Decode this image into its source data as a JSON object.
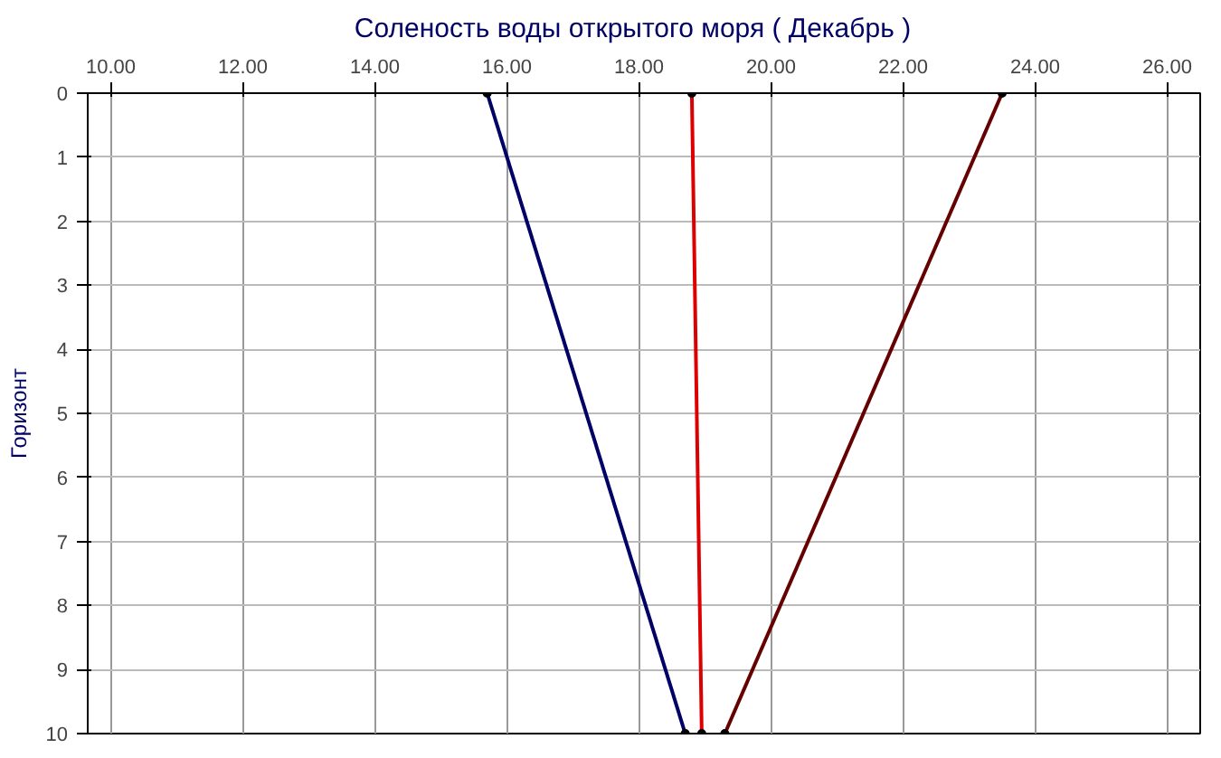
{
  "chart_data": {
    "type": "line",
    "title": "Соленость воды открытого моря    ( Декабрь )",
    "ylabel": "Горизонт",
    "series": [
      {
        "color": "#000066",
        "x": [
          15.7,
          18.7
        ],
        "values": [
          0,
          10
        ]
      },
      {
        "color": "#dd0000",
        "x": [
          18.8,
          18.95
        ],
        "values": [
          0,
          10
        ]
      },
      {
        "color": "#660000",
        "x": [
          23.5,
          19.3
        ],
        "values": [
          0,
          10
        ]
      }
    ],
    "xlim": [
      9.65,
      26.5
    ],
    "xticks": [
      {
        "value": 10,
        "label": "10.00"
      },
      {
        "value": 12,
        "label": "12.00"
      },
      {
        "value": 14,
        "label": "14.00"
      },
      {
        "value": 16,
        "label": "16.00"
      },
      {
        "value": 18,
        "label": "18.00"
      },
      {
        "value": 20,
        "label": "20.00"
      },
      {
        "value": 22,
        "label": "22.00"
      },
      {
        "value": 24,
        "label": "24.00"
      },
      {
        "value": 26,
        "label": "26.00"
      }
    ],
    "ylim": [
      10,
      0
    ],
    "yticks": [
      0,
      1,
      2,
      3,
      4,
      5,
      6,
      7,
      8,
      9,
      10
    ],
    "grid": true,
    "marker": "circle",
    "line_style": "solid"
  }
}
